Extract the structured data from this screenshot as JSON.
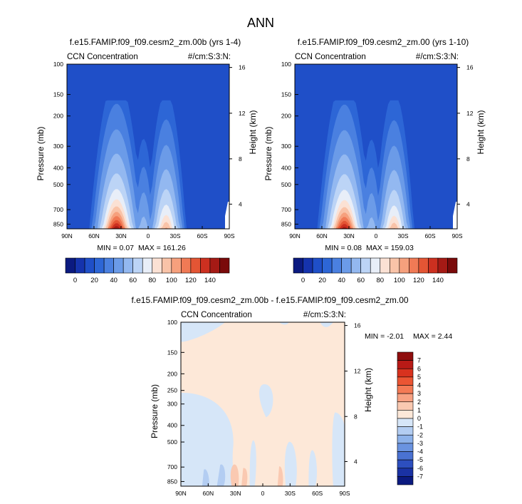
{
  "page": {
    "title": "ANN"
  },
  "chart_data": [
    {
      "type": "heatmap",
      "title": "f.e15.FAMIP.f09_f09.cesm2_zm.00b (yrs 1-4)",
      "subtitle_left": "CCN Concentration",
      "subtitle_right": "#/cm:S:3:N:",
      "ylabel": "Pressure (mb)",
      "ylabel_right": "Height (km)",
      "x_ticks": [
        "90N",
        "60N",
        "30N",
        "0",
        "30S",
        "60S",
        "90S"
      ],
      "y_ticks": [
        "100",
        "150",
        "200",
        "300",
        "400",
        "500",
        "700",
        "850"
      ],
      "y_ticks_right": [
        "16",
        "12",
        "8",
        "4"
      ],
      "min_label": "MIN =  0.07",
      "max_label": "MAX = 161.26",
      "min": 0.07,
      "max": 161.26,
      "colorbar": {
        "labels": [
          "0",
          "20",
          "40",
          "60",
          "80",
          "100",
          "120",
          "140"
        ],
        "levels": [
          -10,
          0,
          10,
          20,
          30,
          40,
          50,
          60,
          70,
          80,
          90,
          100,
          110,
          120,
          130,
          140,
          150
        ],
        "colors": [
          "#0b1a80",
          "#1533ad",
          "#1f4fc8",
          "#2d66d6",
          "#4a80e0",
          "#6b9be8",
          "#93b8f0",
          "#bcd4f6",
          "#e8eef8",
          "#fbe1d4",
          "#f9c3a8",
          "#f6a07d",
          "#f07a55",
          "#e45534",
          "#cc3020",
          "#a51a15",
          "#7a0a0a"
        ]
      }
    },
    {
      "type": "heatmap",
      "title": "f.e15.FAMIP.f09_f09.cesm2_zm.00 (yrs 1-10)",
      "subtitle_left": "CCN Concentration",
      "subtitle_right": "#/cm:S:3:N:",
      "ylabel": "Pressure (mb)",
      "ylabel_right": "Height (km)",
      "x_ticks": [
        "90N",
        "60N",
        "30N",
        "0",
        "30S",
        "60S",
        "90S"
      ],
      "y_ticks": [
        "100",
        "150",
        "200",
        "300",
        "400",
        "500",
        "700",
        "850"
      ],
      "y_ticks_right": [
        "16",
        "12",
        "8",
        "4"
      ],
      "min_label": "MIN =  0.08",
      "max_label": "MAX = 159.03",
      "min": 0.08,
      "max": 159.03,
      "colorbar": {
        "labels": [
          "0",
          "20",
          "40",
          "60",
          "80",
          "100",
          "120",
          "140"
        ],
        "levels": [
          -10,
          0,
          10,
          20,
          30,
          40,
          50,
          60,
          70,
          80,
          90,
          100,
          110,
          120,
          130,
          140,
          150
        ],
        "colors": [
          "#0b1a80",
          "#1533ad",
          "#1f4fc8",
          "#2d66d6",
          "#4a80e0",
          "#6b9be8",
          "#93b8f0",
          "#bcd4f6",
          "#e8eef8",
          "#fbe1d4",
          "#f9c3a8",
          "#f6a07d",
          "#f07a55",
          "#e45534",
          "#cc3020",
          "#a51a15",
          "#7a0a0a"
        ]
      }
    },
    {
      "type": "heatmap",
      "title": "f.e15.FAMIP.f09_f09.cesm2_zm.00b - f.e15.FAMIP.f09_f09.cesm2_zm.00",
      "subtitle_left": "CCN Concentration",
      "subtitle_right": "#/cm:S:3:N:",
      "ylabel": "Pressure (mb)",
      "ylabel_right": "Height (km)",
      "x_ticks": [
        "90N",
        "60N",
        "30N",
        "0",
        "30S",
        "60S",
        "90S"
      ],
      "y_ticks": [
        "100",
        "150",
        "200",
        "250",
        "300",
        "400",
        "500",
        "700",
        "850"
      ],
      "y_ticks_right": [
        "16",
        "12",
        "8",
        "4"
      ],
      "min_label": "MIN = -2.01",
      "max_label": "MAX =  2.44",
      "min": -2.01,
      "max": 2.44,
      "colorbar": {
        "labels": [
          "7",
          "6",
          "5",
          "4",
          "3",
          "2",
          "1",
          "0",
          "-1",
          "-2",
          "-3",
          "-4",
          "-5",
          "-6",
          "-7"
        ],
        "colors_top_to_bottom": [
          "#8f0d0d",
          "#b81a16",
          "#d8321e",
          "#eb5533",
          "#f47a55",
          "#f8a283",
          "#fac9b1",
          "#fde8d8",
          "#d6e6f8",
          "#b3cdf2",
          "#8db2ea",
          "#6a93e0",
          "#4a72d2",
          "#2d4fbf",
          "#1a32a4",
          "#0b1a80"
        ]
      }
    }
  ]
}
